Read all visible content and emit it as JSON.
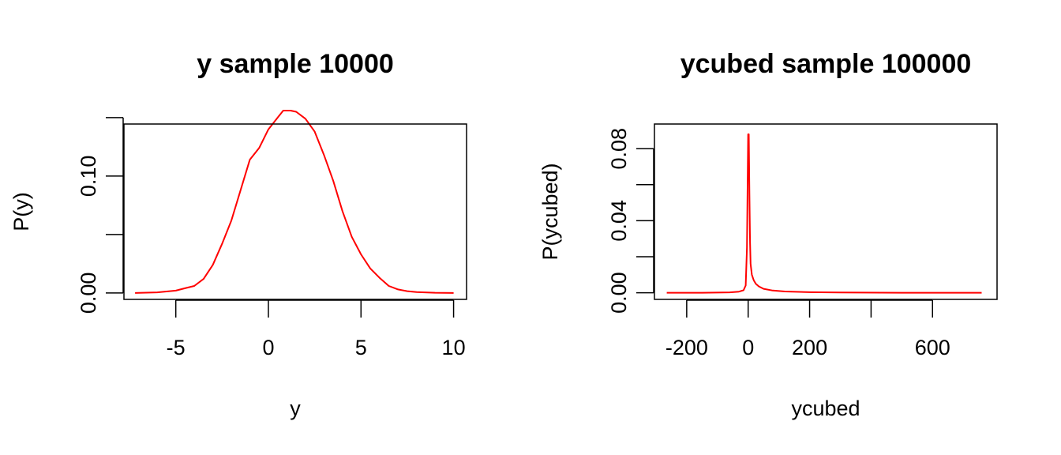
{
  "colors": {
    "line": "#ff0000",
    "axis": "#000000",
    "background": "#ffffff"
  },
  "chart_data": [
    {
      "type": "line",
      "title": "y sample 10000",
      "xlabel": "y",
      "ylabel": "P(y)",
      "xlim": [
        -7.8,
        10.7
      ],
      "ylim": [
        -0.0055,
        0.1445
      ],
      "xticks": [
        -5,
        0,
        5,
        10
      ],
      "xtick_labels": [
        "-5",
        "0",
        "5",
        "10"
      ],
      "yticks": [
        0.0,
        0.05,
        0.1,
        0.15
      ],
      "ytick_labels": [
        "0.00",
        "",
        "0.10",
        ""
      ],
      "grid": false,
      "legend": "none",
      "series": [
        {
          "color": "#ff0000",
          "x": [
            -7.2,
            -6.0,
            -5.0,
            -4.5,
            -4.0,
            -3.5,
            -3.0,
            -2.5,
            -2.0,
            -1.5,
            -1.0,
            -0.5,
            0.0,
            0.5,
            0.8,
            1.2,
            1.5,
            2.0,
            2.5,
            3.0,
            3.5,
            4.0,
            4.5,
            5.0,
            5.5,
            6.0,
            6.5,
            7.0,
            7.5,
            8.0,
            9.0,
            10.0
          ],
          "y": [
            0.0,
            0.0005,
            0.002,
            0.004,
            0.006,
            0.012,
            0.024,
            0.042,
            0.062,
            0.088,
            0.114,
            0.124,
            0.14,
            0.15,
            0.156,
            0.156,
            0.155,
            0.149,
            0.138,
            0.118,
            0.096,
            0.07,
            0.048,
            0.033,
            0.021,
            0.013,
            0.006,
            0.003,
            0.0015,
            0.0008,
            0.0002,
            0.0
          ]
        }
      ]
    },
    {
      "type": "line",
      "title": "ycubed sample 100000",
      "xlabel": "ycubed",
      "ylabel": "P(ycubed)",
      "xlim": [
        -305,
        810
      ],
      "ylim": [
        -0.0037,
        0.0937
      ],
      "xticks": [
        -200,
        0,
        200,
        400,
        600
      ],
      "xtick_labels": [
        "-200",
        "0",
        "200",
        "",
        "600"
      ],
      "yticks": [
        0.0,
        0.02,
        0.04,
        0.06,
        0.08
      ],
      "ytick_labels": [
        "0.00",
        "",
        "0.04",
        "",
        "0.08"
      ],
      "grid": false,
      "legend": "none",
      "series": [
        {
          "color": "#ff0000",
          "x": [
            -265,
            -150,
            -60,
            -30,
            -15,
            -8,
            -4,
            0,
            2,
            4,
            6,
            8,
            12,
            18,
            25,
            35,
            50,
            80,
            120,
            200,
            300,
            500,
            760
          ],
          "y": [
            0.0,
            0.0,
            0.0002,
            0.0006,
            0.0014,
            0.004,
            0.025,
            0.088,
            0.088,
            0.055,
            0.028,
            0.016,
            0.01,
            0.007,
            0.005,
            0.0035,
            0.0022,
            0.0012,
            0.0007,
            0.0003,
            0.0001,
            0.0,
            0.0
          ]
        }
      ]
    }
  ]
}
